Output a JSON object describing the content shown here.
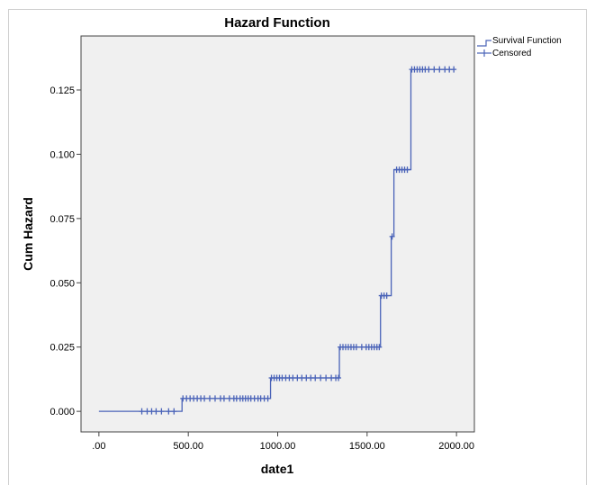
{
  "chart_data": {
    "type": "line",
    "title": "Hazard Function",
    "xlabel": "date1",
    "ylabel": "Cum Hazard",
    "xlim": [
      -100,
      2100
    ],
    "ylim": [
      -0.008,
      0.146
    ],
    "x_ticks": [
      0,
      500,
      1000,
      1500,
      2000
    ],
    "x_tick_labels": [
      ".00",
      "500.00",
      "1000.00",
      "1500.00",
      "2000.00"
    ],
    "y_ticks": [
      0,
      0.025,
      0.05,
      0.075,
      0.1,
      0.125
    ],
    "y_tick_labels": [
      "0.000",
      "0.025",
      "0.050",
      "0.075",
      "0.100",
      "0.125"
    ],
    "grid": false,
    "legend_position": "top-right",
    "series": [
      {
        "name": "Survival Function",
        "kind": "step",
        "color": "#4a63b8",
        "steps": [
          [
            0,
            0
          ],
          [
            465,
            0.005
          ],
          [
            960,
            0.013
          ],
          [
            1345,
            0.025
          ],
          [
            1575,
            0.045
          ],
          [
            1635,
            0.068
          ],
          [
            1650,
            0.094
          ],
          [
            1745,
            0.133
          ],
          [
            1990,
            0.133
          ]
        ]
      },
      {
        "name": "Censored",
        "kind": "marker-plus",
        "color": "#4a63b8",
        "points": [
          [
            240,
            0
          ],
          [
            270,
            0
          ],
          [
            295,
            0
          ],
          [
            320,
            0
          ],
          [
            350,
            0
          ],
          [
            390,
            0
          ],
          [
            420,
            0
          ],
          [
            470,
            0.005
          ],
          [
            490,
            0.005
          ],
          [
            510,
            0.005
          ],
          [
            530,
            0.005
          ],
          [
            550,
            0.005
          ],
          [
            570,
            0.005
          ],
          [
            590,
            0.005
          ],
          [
            620,
            0.005
          ],
          [
            650,
            0.005
          ],
          [
            680,
            0.005
          ],
          [
            700,
            0.005
          ],
          [
            730,
            0.005
          ],
          [
            755,
            0.005
          ],
          [
            770,
            0.005
          ],
          [
            790,
            0.005
          ],
          [
            805,
            0.005
          ],
          [
            820,
            0.005
          ],
          [
            835,
            0.005
          ],
          [
            850,
            0.005
          ],
          [
            870,
            0.005
          ],
          [
            890,
            0.005
          ],
          [
            905,
            0.005
          ],
          [
            925,
            0.005
          ],
          [
            945,
            0.005
          ],
          [
            965,
            0.013
          ],
          [
            980,
            0.013
          ],
          [
            995,
            0.013
          ],
          [
            1010,
            0.013
          ],
          [
            1025,
            0.013
          ],
          [
            1045,
            0.013
          ],
          [
            1065,
            0.013
          ],
          [
            1085,
            0.013
          ],
          [
            1110,
            0.013
          ],
          [
            1135,
            0.013
          ],
          [
            1160,
            0.013
          ],
          [
            1185,
            0.013
          ],
          [
            1210,
            0.013
          ],
          [
            1240,
            0.013
          ],
          [
            1270,
            0.013
          ],
          [
            1300,
            0.013
          ],
          [
            1325,
            0.013
          ],
          [
            1340,
            0.013
          ],
          [
            1350,
            0.025
          ],
          [
            1365,
            0.025
          ],
          [
            1380,
            0.025
          ],
          [
            1395,
            0.025
          ],
          [
            1410,
            0.025
          ],
          [
            1425,
            0.025
          ],
          [
            1440,
            0.025
          ],
          [
            1470,
            0.025
          ],
          [
            1495,
            0.025
          ],
          [
            1510,
            0.025
          ],
          [
            1525,
            0.025
          ],
          [
            1540,
            0.025
          ],
          [
            1555,
            0.025
          ],
          [
            1568,
            0.025
          ],
          [
            1580,
            0.045
          ],
          [
            1595,
            0.045
          ],
          [
            1610,
            0.045
          ],
          [
            1640,
            0.068
          ],
          [
            1665,
            0.094
          ],
          [
            1680,
            0.094
          ],
          [
            1695,
            0.094
          ],
          [
            1710,
            0.094
          ],
          [
            1725,
            0.094
          ],
          [
            1750,
            0.133
          ],
          [
            1765,
            0.133
          ],
          [
            1780,
            0.133
          ],
          [
            1795,
            0.133
          ],
          [
            1810,
            0.133
          ],
          [
            1825,
            0.133
          ],
          [
            1845,
            0.133
          ],
          [
            1875,
            0.133
          ],
          [
            1905,
            0.133
          ],
          [
            1935,
            0.133
          ],
          [
            1960,
            0.133
          ],
          [
            1985,
            0.133
          ]
        ]
      }
    ]
  }
}
